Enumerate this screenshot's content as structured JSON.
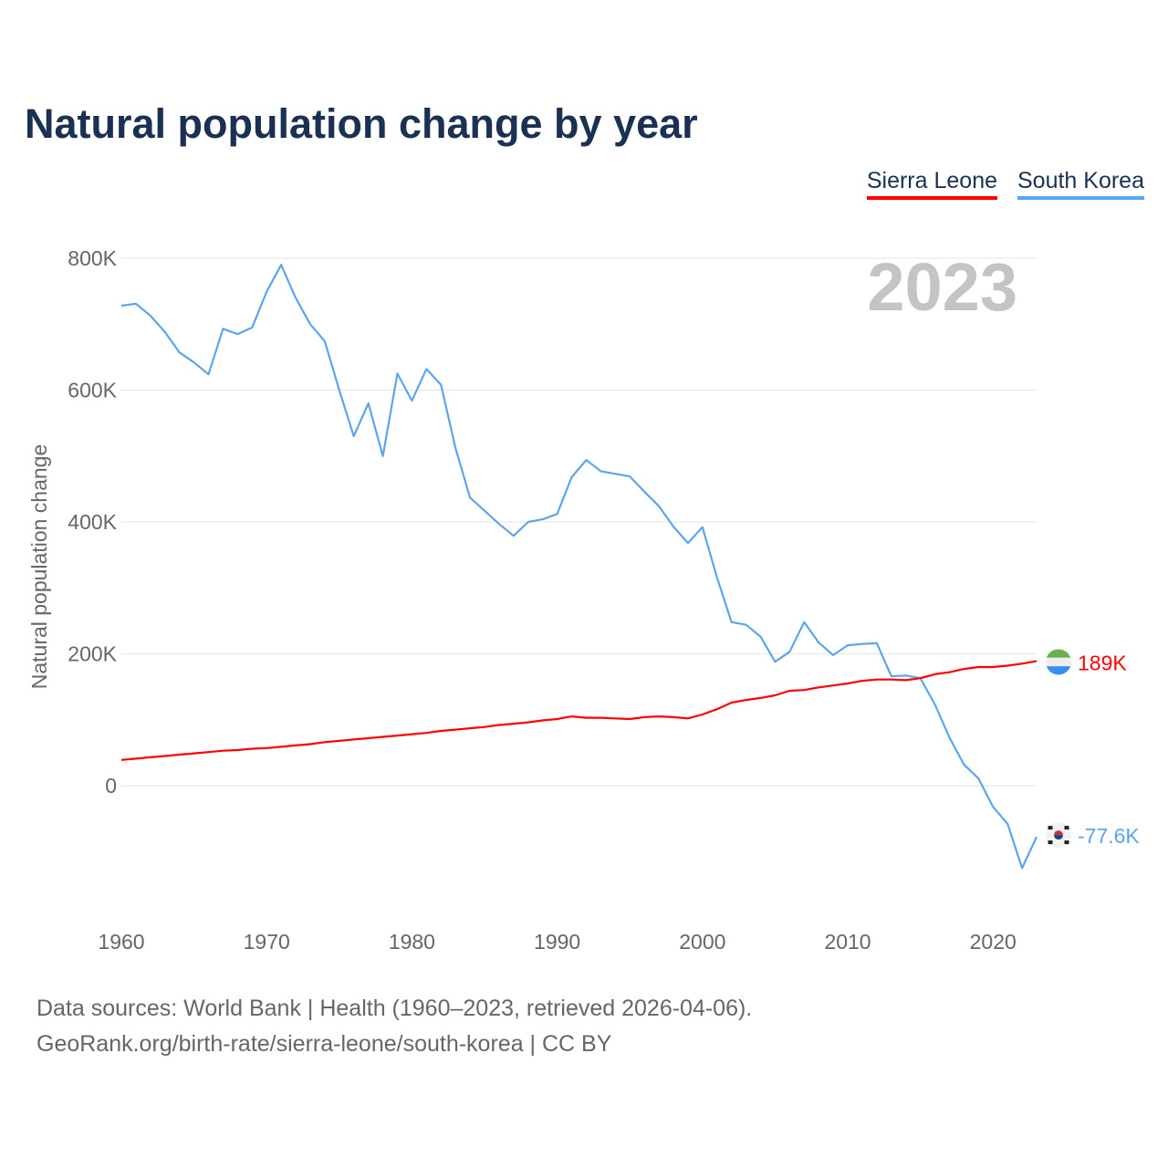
{
  "title": "Natural population change by year",
  "legend": [
    {
      "name": "Sierra Leone",
      "color": "#ff0000"
    },
    {
      "name": "South Korea",
      "color": "#5aa6ee"
    }
  ],
  "year_label": "2023",
  "footer": {
    "line1": "Data sources: World Bank | Health (1960–2023, retrieved 2026-04-06).",
    "line2": "GeoRank.org/birth-rate/sierra-leone/south-korea | CC BY"
  },
  "chart_data": {
    "type": "line",
    "title": "Natural population change by year",
    "xlabel": "",
    "ylabel": "Natural population change",
    "xlim": [
      1960,
      2023
    ],
    "ylim": [
      -190000,
      830000
    ],
    "x_ticks": [
      1960,
      1970,
      1980,
      1990,
      2000,
      2010,
      2020
    ],
    "y_ticks": [
      {
        "value": 0,
        "label": "0"
      },
      {
        "value": 200000,
        "label": "200K"
      },
      {
        "value": 400000,
        "label": "400K"
      },
      {
        "value": 600000,
        "label": "600K"
      },
      {
        "value": 800000,
        "label": "800K"
      }
    ],
    "grid": true,
    "legend_position": "top-right",
    "x": [
      1960,
      1961,
      1962,
      1963,
      1964,
      1965,
      1966,
      1967,
      1968,
      1969,
      1970,
      1971,
      1972,
      1973,
      1974,
      1975,
      1976,
      1977,
      1978,
      1979,
      1980,
      1981,
      1982,
      1983,
      1984,
      1985,
      1986,
      1987,
      1988,
      1989,
      1990,
      1991,
      1992,
      1993,
      1994,
      1995,
      1996,
      1997,
      1998,
      1999,
      2000,
      2001,
      2002,
      2003,
      2004,
      2005,
      2006,
      2007,
      2008,
      2009,
      2010,
      2011,
      2012,
      2013,
      2014,
      2015,
      2016,
      2017,
      2018,
      2019,
      2020,
      2021,
      2022,
      2023
    ],
    "series": [
      {
        "name": "Sierra Leone",
        "color": "#ff0000",
        "end_label": "189K",
        "values": [
          39000,
          41000,
          43000,
          45000,
          47000,
          49000,
          51000,
          53000,
          54000,
          56000,
          57000,
          59000,
          61000,
          63000,
          66000,
          68000,
          70000,
          72000,
          74000,
          76000,
          78000,
          80000,
          83000,
          85000,
          87000,
          89000,
          92000,
          94000,
          96000,
          99000,
          101000,
          105000,
          103000,
          103000,
          102000,
          101000,
          104000,
          105000,
          104000,
          102000,
          108000,
          116000,
          126000,
          130000,
          133000,
          137000,
          144000,
          145000,
          149000,
          152000,
          155000,
          159000,
          161000,
          161000,
          160000,
          163000,
          169000,
          172000,
          177000,
          180000,
          180000,
          182000,
          185000,
          189000
        ]
      },
      {
        "name": "South Korea",
        "color": "#5aa6ee",
        "end_label": "-77.6K",
        "values": [
          728000,
          731000,
          713000,
          688000,
          657000,
          642000,
          624000,
          693000,
          685000,
          695000,
          749000,
          790000,
          740000,
          700000,
          674000,
          600000,
          530000,
          580000,
          500000,
          625000,
          584000,
          632000,
          608000,
          512000,
          437000,
          417000,
          397000,
          379000,
          400000,
          404000,
          412000,
          468000,
          494000,
          477000,
          473000,
          469000,
          446000,
          424000,
          393000,
          368000,
          392000,
          316000,
          248000,
          244000,
          226000,
          188000,
          203000,
          248000,
          217000,
          198000,
          213000,
          215000,
          216000,
          166000,
          167000,
          163000,
          123000,
          73000,
          32000,
          11000,
          -32000,
          -58000,
          -125000,
          -77600
        ]
      }
    ]
  }
}
